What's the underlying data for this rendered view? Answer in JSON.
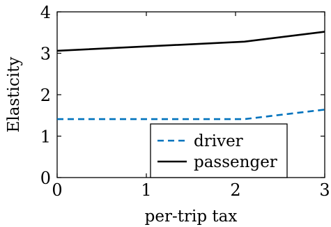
{
  "chart_data": {
    "type": "line",
    "title": "",
    "xlabel": "per-trip tax",
    "ylabel": "Elasticity",
    "xlim": [
      0,
      3
    ],
    "ylim": [
      0,
      4
    ],
    "xticks": [
      0,
      1,
      2,
      3
    ],
    "yticks": [
      0,
      1,
      2,
      3,
      4
    ],
    "xtick_labels": [
      "0",
      "1",
      "2",
      "3"
    ],
    "ytick_labels": [
      "0",
      "1",
      "2",
      "3",
      "4"
    ],
    "grid": false,
    "legend_position": "bottom-right",
    "series": [
      {
        "name": "driver",
        "color": "#0072bd",
        "style": "dashed",
        "x": [
          0,
          2.1,
          3
        ],
        "y": [
          1.41,
          1.41,
          1.64
        ]
      },
      {
        "name": "passenger",
        "color": "#000000",
        "style": "solid",
        "x": [
          0,
          2.1,
          3
        ],
        "y": [
          3.06,
          3.28,
          3.52
        ]
      }
    ]
  }
}
